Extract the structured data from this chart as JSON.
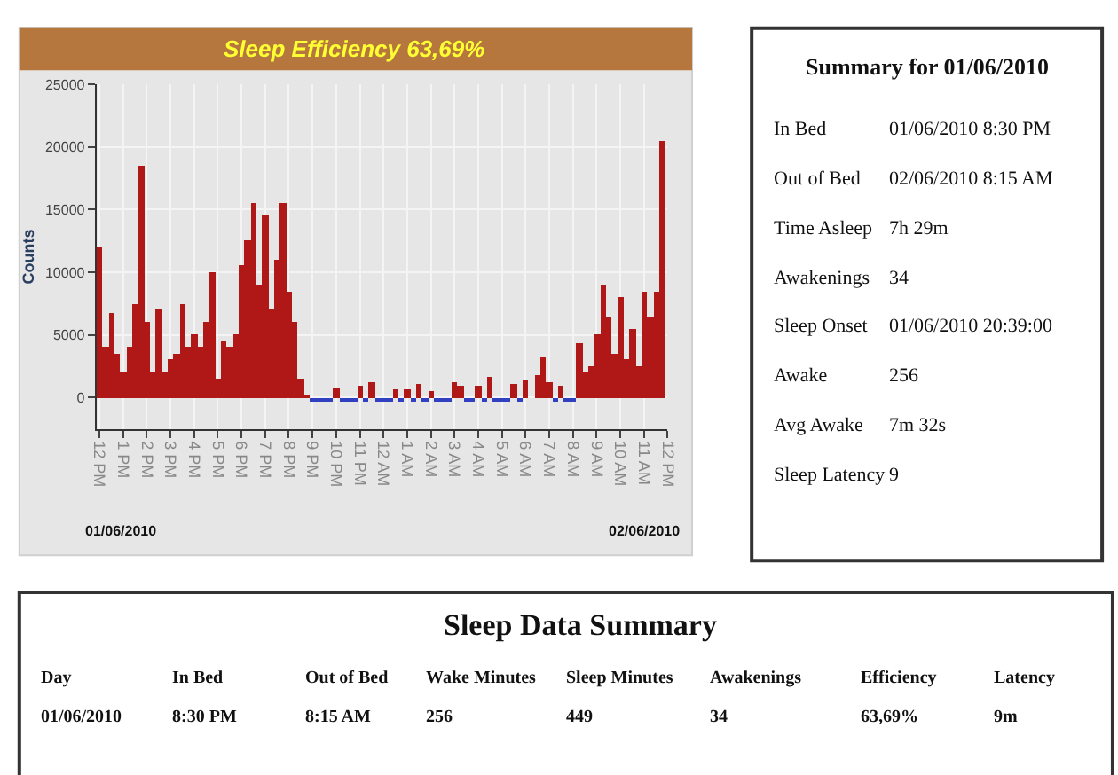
{
  "chart_data": [
    {
      "type": "bar",
      "title": "Sleep Efficiency 63,69%",
      "ylabel": "Counts",
      "categories": [
        "12 PM",
        null,
        null,
        null,
        "1 PM",
        null,
        null,
        null,
        "2 PM",
        null,
        null,
        null,
        "3 PM",
        null,
        null,
        null,
        "4 PM",
        null,
        null,
        null,
        "5 PM",
        null,
        null,
        null,
        "6 PM",
        null,
        null,
        null,
        "7 PM",
        null,
        null,
        null,
        "8 PM",
        null,
        null,
        null,
        "9 PM",
        null,
        null,
        null,
        "10 PM",
        null,
        null,
        null,
        "11 PM",
        null,
        null,
        null,
        "12 AM",
        null,
        null,
        null,
        "1 AM",
        null,
        null,
        null,
        "2 AM",
        null,
        null,
        null,
        "3 AM",
        null,
        null,
        null,
        "4 AM",
        null,
        null,
        null,
        "5 AM",
        null,
        null,
        null,
        "6 AM",
        null,
        null,
        null,
        "7 AM",
        null,
        null,
        null,
        "8 AM",
        null,
        null,
        null,
        "9 AM",
        null,
        null,
        null,
        "10 AM",
        null,
        null,
        null,
        "11 AM",
        null,
        null,
        null,
        "12 PM"
      ],
      "series": [
        {
          "color": "#b01818",
          "values": [
            12000,
            4000,
            6800,
            3500,
            2000,
            4000,
            7500,
            18500,
            6000,
            2000,
            7000,
            2000,
            3000,
            3500,
            7500,
            4000,
            5000,
            4000,
            6000,
            10000,
            1500,
            4500,
            4000,
            5000,
            10500,
            12500,
            15500,
            9000,
            14500,
            7000,
            11000,
            15500,
            8500,
            6000,
            1500,
            200,
            null,
            null,
            null,
            null,
            800,
            null,
            null,
            null,
            900,
            null,
            1200,
            null,
            null,
            null,
            600,
            null,
            700,
            null,
            1000,
            null,
            500,
            null,
            null,
            null,
            1200,
            900,
            null,
            null,
            900,
            null,
            1600,
            null,
            null,
            null,
            1000,
            null,
            1300,
            null,
            1800,
            3200,
            1200,
            null,
            900,
            null,
            null,
            4300,
            2000,
            2500,
            5000,
            9000,
            6500,
            3500,
            8000,
            3000,
            5500,
            2500,
            8500,
            6500,
            8500,
            20500,
            null
          ]
        },
        {
          "color": "#3040c0",
          "values": [
            null,
            null,
            null,
            null,
            null,
            null,
            null,
            null,
            null,
            null,
            null,
            null,
            null,
            null,
            null,
            null,
            null,
            null,
            null,
            null,
            null,
            null,
            null,
            null,
            null,
            null,
            null,
            null,
            null,
            null,
            null,
            null,
            null,
            null,
            null,
            null,
            -300,
            -300,
            -300,
            -300,
            null,
            -300,
            -300,
            -300,
            null,
            -300,
            null,
            -300,
            -300,
            -300,
            null,
            -300,
            null,
            -300,
            null,
            -300,
            null,
            -300,
            -300,
            -300,
            null,
            null,
            -300,
            -300,
            null,
            -300,
            null,
            -300,
            -300,
            -300,
            null,
            -300,
            null,
            null,
            null,
            null,
            null,
            -300,
            null,
            -300,
            -300,
            null,
            null,
            null,
            null,
            null,
            null,
            null,
            null,
            null,
            null,
            null,
            null,
            null,
            null,
            null,
            null
          ]
        }
      ],
      "ylim": [
        -2500,
        25000
      ],
      "yticks": [
        0,
        5000,
        10000,
        15000,
        20000,
        25000
      ],
      "grid": true,
      "annotations": [
        "01/06/2010",
        "02/06/2010"
      ]
    },
    {
      "type": "other",
      "title": "Summary for 01/06/2010",
      "annotations": [
        "In Bed",
        "01/06/2010 8:30 PM",
        "Out of Bed",
        "02/06/2010 8:15 AM",
        "Time Asleep",
        "7h 29m",
        "Awakenings",
        "34",
        "Sleep Onset",
        "01/06/2010 20:39:00",
        "Awake",
        "256",
        "Avg Awake",
        "7m 32s",
        "Sleep Latency",
        "9"
      ]
    },
    {
      "type": "other",
      "title": "Sleep Data Summary",
      "categories": [
        "Day",
        "In Bed",
        "Out of Bed",
        "Wake Minutes",
        "Sleep Minutes",
        "Awakenings",
        "Efficiency",
        "Latency"
      ],
      "annotations": [
        "01/06/2010",
        "8:30 PM",
        "8:15 AM",
        "256",
        "449",
        "34",
        "63,69%",
        "9m"
      ]
    }
  ]
}
